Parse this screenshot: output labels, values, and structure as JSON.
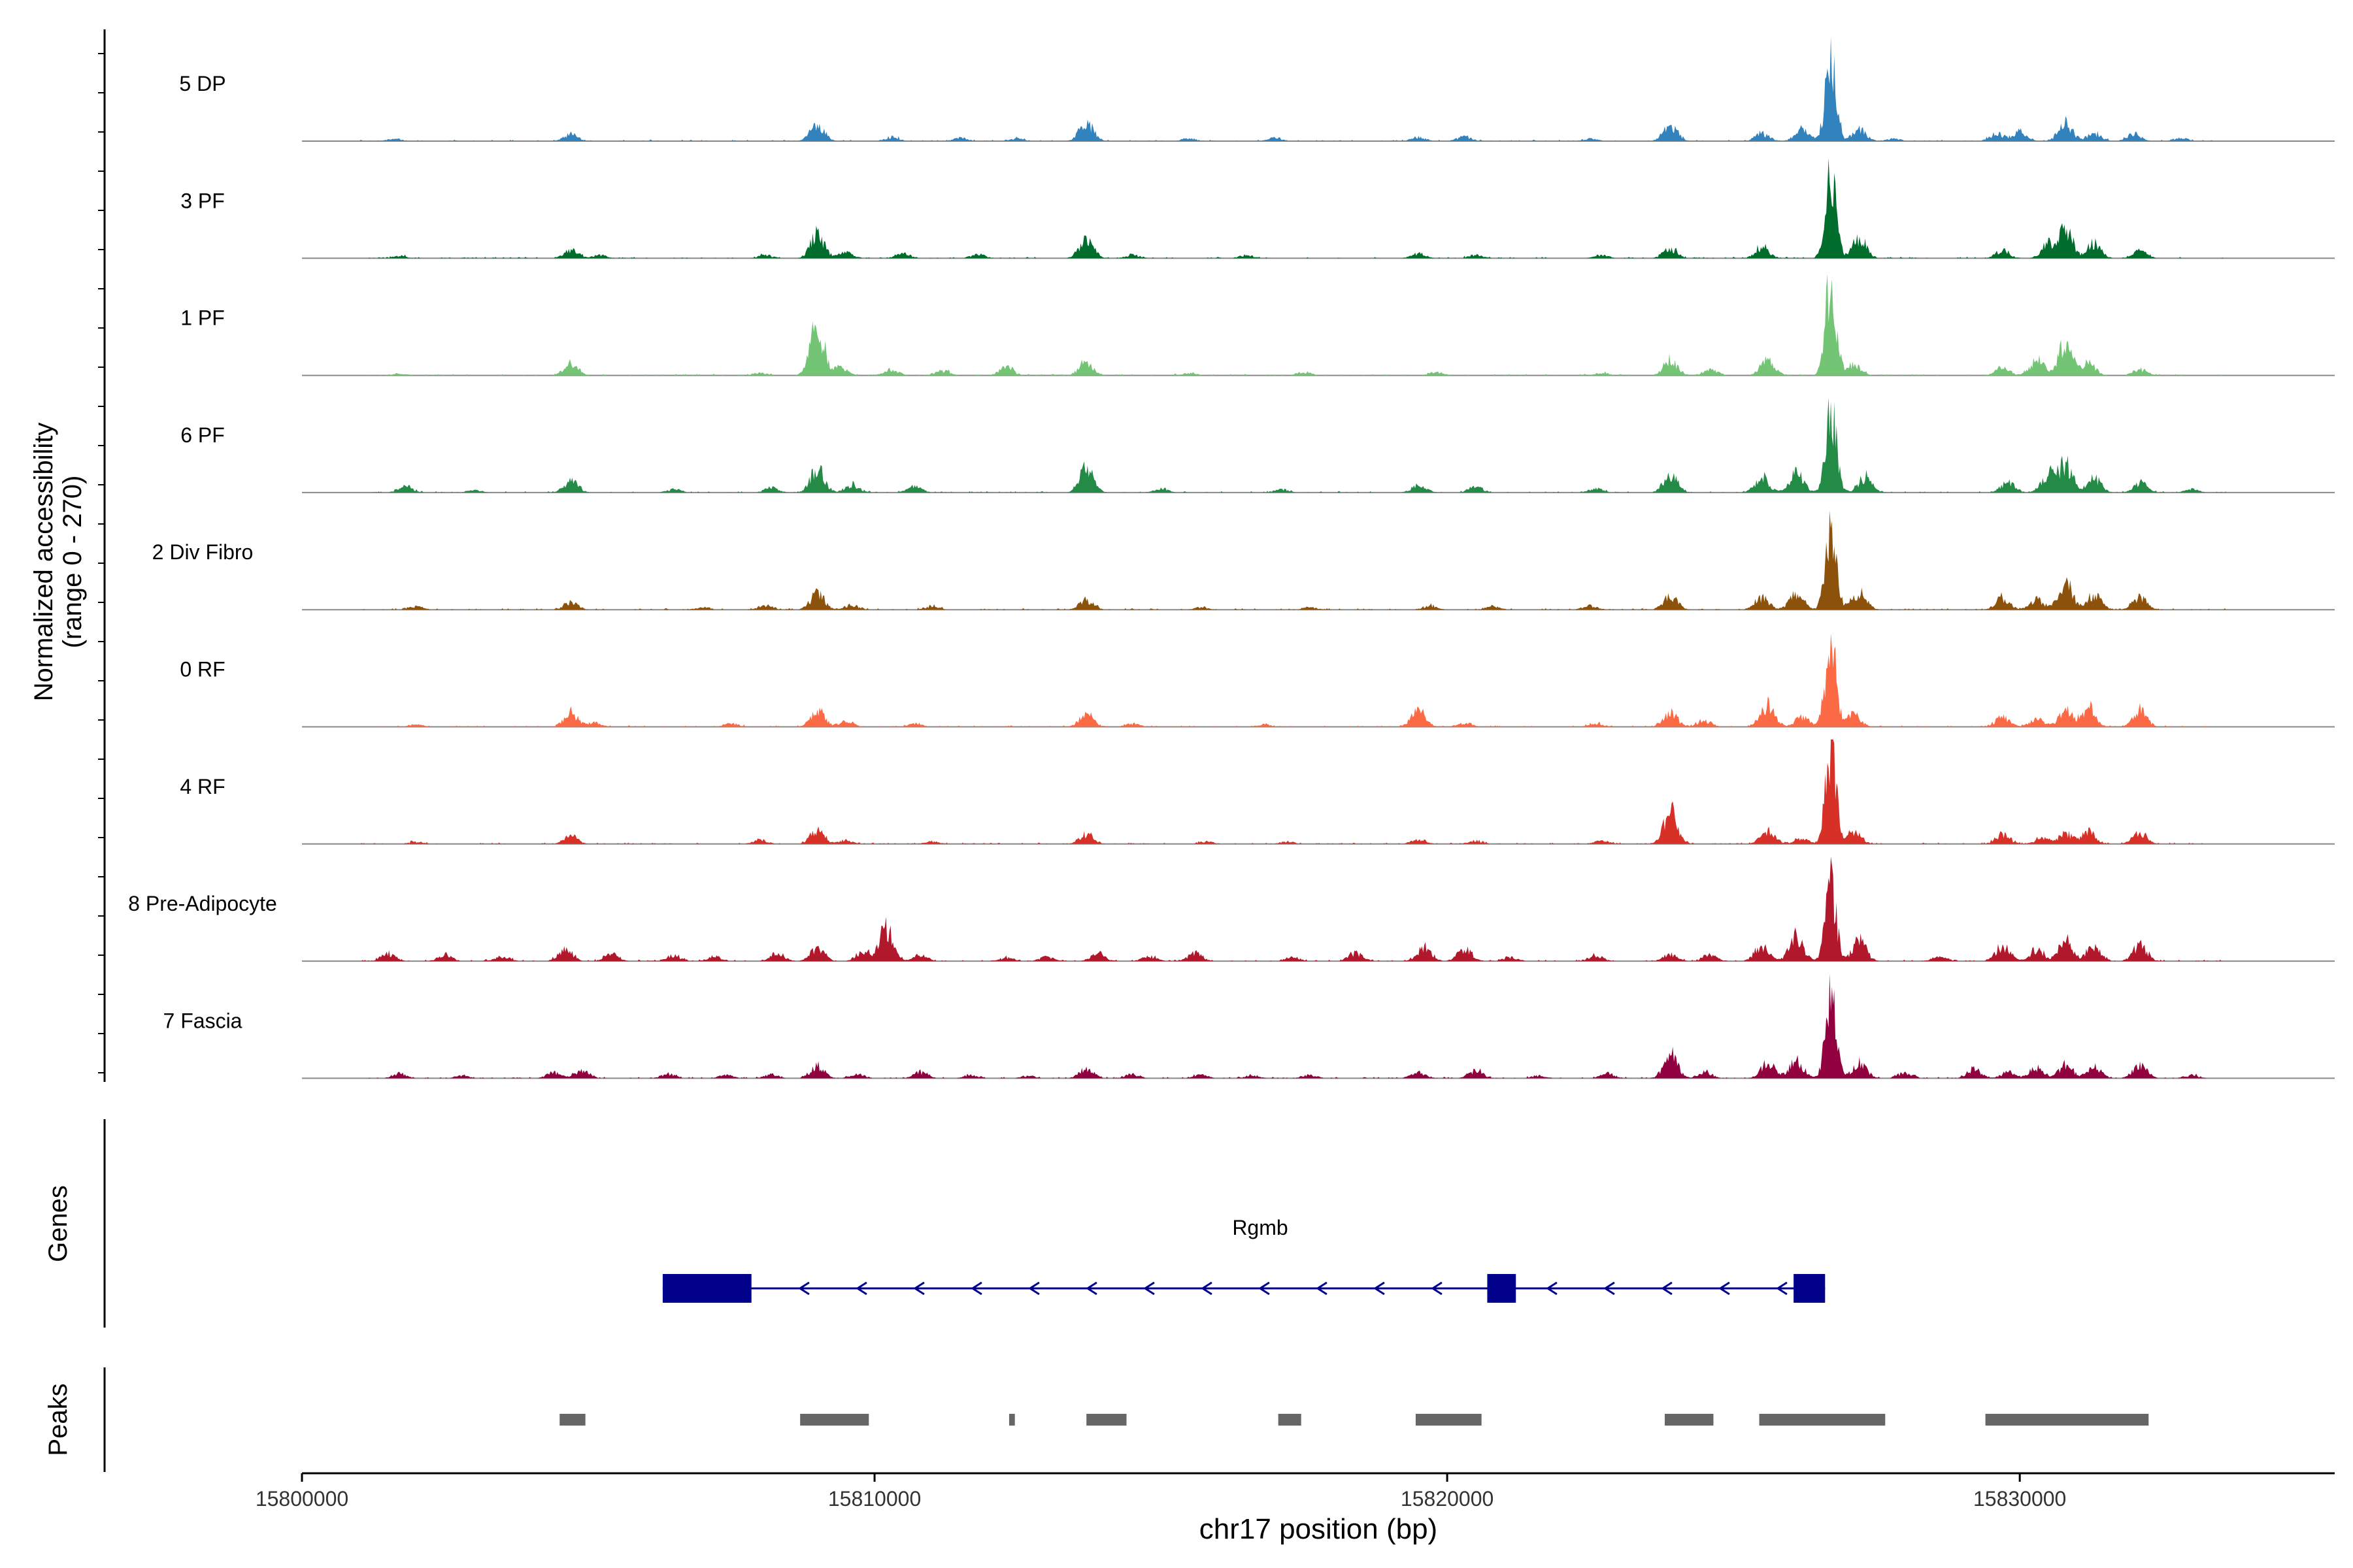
{
  "chart_data": {
    "type": "area",
    "subtype": "genome-coverage-tracks",
    "ylabel_line1": "Normalized accessibility",
    "ylabel_line2": "(range 0 - 270)",
    "y_range": [
      0,
      270
    ],
    "xlabel": "chr17 position (bp)",
    "xlim": [
      15800000,
      15835500
    ],
    "x_ticks": [
      15800000,
      15810000,
      15820000,
      15830000
    ],
    "x_tick_labels": [
      "15800000",
      "15810000",
      "15820000",
      "15830000"
    ],
    "tracks": [
      {
        "name": "5 DP",
        "color": "#3182bd",
        "seed": 11,
        "peaks": [
          [
            15801600,
            6
          ],
          [
            15804700,
            18
          ],
          [
            15809000,
            40
          ],
          [
            15810300,
            10
          ],
          [
            15811500,
            8
          ],
          [
            15812500,
            6
          ],
          [
            15813700,
            50
          ],
          [
            15815500,
            6
          ],
          [
            15817000,
            8
          ],
          [
            15819500,
            10
          ],
          [
            15820300,
            12
          ],
          [
            15822500,
            6
          ],
          [
            15823900,
            40
          ],
          [
            15825500,
            20
          ],
          [
            15826200,
            30
          ],
          [
            15826700,
            230
          ],
          [
            15827200,
            30
          ],
          [
            15827800,
            6
          ],
          [
            15829600,
            18
          ],
          [
            15830000,
            25
          ],
          [
            15830800,
            45
          ],
          [
            15831300,
            20
          ],
          [
            15832000,
            18
          ],
          [
            15832800,
            8
          ]
        ]
      },
      {
        "name": "3 PF",
        "color": "#006d2c",
        "seed": 23,
        "peaks": [
          [
            15801700,
            6
          ],
          [
            15804700,
            20
          ],
          [
            15805200,
            8
          ],
          [
            15808100,
            8
          ],
          [
            15809000,
            60
          ],
          [
            15809500,
            15
          ],
          [
            15810500,
            12
          ],
          [
            15811800,
            10
          ],
          [
            15813700,
            50
          ],
          [
            15814500,
            8
          ],
          [
            15816500,
            8
          ],
          [
            15819500,
            12
          ],
          [
            15820500,
            8
          ],
          [
            15822700,
            8
          ],
          [
            15823900,
            25
          ],
          [
            15825500,
            30
          ],
          [
            15826700,
            230
          ],
          [
            15827200,
            50
          ],
          [
            15829700,
            20
          ],
          [
            15830500,
            35
          ],
          [
            15830800,
            70
          ],
          [
            15831300,
            40
          ],
          [
            15832100,
            18
          ]
        ]
      },
      {
        "name": "1 PF",
        "color": "#74c476",
        "seed": 37,
        "peaks": [
          [
            15801700,
            5
          ],
          [
            15804700,
            30
          ],
          [
            15808000,
            6
          ],
          [
            15809000,
            120
          ],
          [
            15809400,
            20
          ],
          [
            15810300,
            15
          ],
          [
            15811200,
            12
          ],
          [
            15812300,
            20
          ],
          [
            15813700,
            35
          ],
          [
            15815500,
            6
          ],
          [
            15817500,
            8
          ],
          [
            15819800,
            8
          ],
          [
            15822700,
            6
          ],
          [
            15823900,
            40
          ],
          [
            15824600,
            15
          ],
          [
            15825600,
            40
          ],
          [
            15826700,
            230
          ],
          [
            15827100,
            30
          ],
          [
            15829700,
            20
          ],
          [
            15830300,
            40
          ],
          [
            15830800,
            80
          ],
          [
            15831200,
            30
          ],
          [
            15832100,
            15
          ]
        ]
      },
      {
        "name": "6 PF",
        "color": "#238b45",
        "seed": 49,
        "peaks": [
          [
            15801800,
            15
          ],
          [
            15803000,
            6
          ],
          [
            15804700,
            30
          ],
          [
            15806500,
            8
          ],
          [
            15808200,
            12
          ],
          [
            15809000,
            60
          ],
          [
            15809600,
            20
          ],
          [
            15810700,
            15
          ],
          [
            15813700,
            60
          ],
          [
            15815000,
            10
          ],
          [
            15817100,
            8
          ],
          [
            15819500,
            20
          ],
          [
            15820500,
            15
          ],
          [
            15822600,
            10
          ],
          [
            15823900,
            45
          ],
          [
            15825500,
            40
          ],
          [
            15826100,
            50
          ],
          [
            15826700,
            230
          ],
          [
            15827300,
            40
          ],
          [
            15829800,
            25
          ],
          [
            15830500,
            45
          ],
          [
            15830800,
            70
          ],
          [
            15831300,
            35
          ],
          [
            15832100,
            25
          ],
          [
            15833000,
            8
          ]
        ]
      },
      {
        "name": "2 Div Fibro",
        "color": "#8c510a",
        "seed": 61,
        "peaks": [
          [
            15802000,
            8
          ],
          [
            15804700,
            20
          ],
          [
            15807000,
            6
          ],
          [
            15808100,
            10
          ],
          [
            15809000,
            40
          ],
          [
            15809600,
            12
          ],
          [
            15811000,
            8
          ],
          [
            15813700,
            25
          ],
          [
            15815700,
            6
          ],
          [
            15817600,
            6
          ],
          [
            15819700,
            10
          ],
          [
            15820800,
            8
          ],
          [
            15822500,
            10
          ],
          [
            15823900,
            35
          ],
          [
            15825500,
            30
          ],
          [
            15826100,
            40
          ],
          [
            15826700,
            230
          ],
          [
            15827200,
            45
          ],
          [
            15829700,
            30
          ],
          [
            15830300,
            25
          ],
          [
            15830800,
            70
          ],
          [
            15831300,
            40
          ],
          [
            15832100,
            30
          ]
        ]
      },
      {
        "name": "0 RF",
        "color": "#fc6a45",
        "seed": 73,
        "peaks": [
          [
            15802000,
            6
          ],
          [
            15804700,
            35
          ],
          [
            15805100,
            10
          ],
          [
            15807500,
            8
          ],
          [
            15809000,
            40
          ],
          [
            15809500,
            15
          ],
          [
            15810700,
            8
          ],
          [
            15813700,
            35
          ],
          [
            15814500,
            8
          ],
          [
            15816800,
            6
          ],
          [
            15819500,
            45
          ],
          [
            15820300,
            10
          ],
          [
            15822600,
            8
          ],
          [
            15823900,
            35
          ],
          [
            15824500,
            15
          ],
          [
            15825600,
            55
          ],
          [
            15826200,
            25
          ],
          [
            15826700,
            230
          ],
          [
            15827100,
            30
          ],
          [
            15829700,
            25
          ],
          [
            15830300,
            20
          ],
          [
            15830800,
            40
          ],
          [
            15831200,
            50
          ],
          [
            15832100,
            40
          ]
        ]
      },
      {
        "name": "4 RF",
        "color": "#d73027",
        "seed": 89,
        "peaks": [
          [
            15802000,
            5
          ],
          [
            15804700,
            20
          ],
          [
            15808000,
            10
          ],
          [
            15809000,
            35
          ],
          [
            15809500,
            10
          ],
          [
            15811000,
            6
          ],
          [
            15813700,
            25
          ],
          [
            15815800,
            6
          ],
          [
            15817200,
            6
          ],
          [
            15819500,
            12
          ],
          [
            15820500,
            8
          ],
          [
            15822700,
            8
          ],
          [
            15823900,
            80
          ],
          [
            15825600,
            35
          ],
          [
            15826200,
            15
          ],
          [
            15826700,
            230
          ],
          [
            15827100,
            30
          ],
          [
            15829700,
            25
          ],
          [
            15830400,
            15
          ],
          [
            15830800,
            25
          ],
          [
            15831200,
            30
          ],
          [
            15832100,
            30
          ]
        ]
      },
      {
        "name": "8 Pre-Adipocyte",
        "color": "#b2182b",
        "seed": 97,
        "peaks": [
          [
            15801500,
            18
          ],
          [
            15802500,
            15
          ],
          [
            15803500,
            12
          ],
          [
            15804600,
            30
          ],
          [
            15805400,
            20
          ],
          [
            15806500,
            15
          ],
          [
            15807200,
            12
          ],
          [
            15808300,
            20
          ],
          [
            15809000,
            30
          ],
          [
            15809800,
            25
          ],
          [
            15810200,
            80
          ],
          [
            15810800,
            15
          ],
          [
            15812300,
            8
          ],
          [
            15813000,
            10
          ],
          [
            15813900,
            20
          ],
          [
            15814800,
            12
          ],
          [
            15815600,
            20
          ],
          [
            15817300,
            10
          ],
          [
            15818400,
            20
          ],
          [
            15819600,
            35
          ],
          [
            15820300,
            30
          ],
          [
            15821100,
            10
          ],
          [
            15822600,
            15
          ],
          [
            15823900,
            18
          ],
          [
            15824600,
            15
          ],
          [
            15825500,
            40
          ],
          [
            15826100,
            60
          ],
          [
            15826700,
            200
          ],
          [
            15827200,
            50
          ],
          [
            15828600,
            10
          ],
          [
            15829700,
            40
          ],
          [
            15830300,
            30
          ],
          [
            15830800,
            50
          ],
          [
            15831300,
            40
          ],
          [
            15832100,
            40
          ]
        ]
      },
      {
        "name": "7 Fascia",
        "color": "#91003f",
        "seed": 113,
        "peaks": [
          [
            15801700,
            12
          ],
          [
            15802800,
            6
          ],
          [
            15804400,
            15
          ],
          [
            15804900,
            20
          ],
          [
            15806400,
            10
          ],
          [
            15807400,
            8
          ],
          [
            15808200,
            10
          ],
          [
            15809000,
            30
          ],
          [
            15809700,
            10
          ],
          [
            15810800,
            15
          ],
          [
            15811700,
            8
          ],
          [
            15812700,
            6
          ],
          [
            15813700,
            25
          ],
          [
            15814500,
            10
          ],
          [
            15815700,
            8
          ],
          [
            15816600,
            6
          ],
          [
            15817600,
            8
          ],
          [
            15819500,
            15
          ],
          [
            15820500,
            20
          ],
          [
            15821600,
            6
          ],
          [
            15822800,
            12
          ],
          [
            15823900,
            60
          ],
          [
            15824500,
            15
          ],
          [
            15825600,
            40
          ],
          [
            15826100,
            45
          ],
          [
            15826700,
            210
          ],
          [
            15827200,
            40
          ],
          [
            15828000,
            15
          ],
          [
            15829200,
            25
          ],
          [
            15829800,
            15
          ],
          [
            15830300,
            25
          ],
          [
            15830800,
            35
          ],
          [
            15831300,
            30
          ],
          [
            15832100,
            35
          ],
          [
            15833000,
            8
          ]
        ]
      }
    ],
    "gene": {
      "name": "Rgmb",
      "color": "#00008b",
      "strand": "-",
      "start": 15806300,
      "end": 15826600,
      "exons": [
        [
          15806300,
          15807850
        ],
        [
          15820700,
          15821200
        ],
        [
          15826050,
          15826600
        ]
      ]
    },
    "peaks_track": {
      "color": "#666666",
      "regions": [
        [
          15804500,
          15804950
        ],
        [
          15808700,
          15809900
        ],
        [
          15812350,
          15812450
        ],
        [
          15813700,
          15814400
        ],
        [
          15817050,
          15817450
        ],
        [
          15819450,
          15820600
        ],
        [
          15823800,
          15824650
        ],
        [
          15825450,
          15827650
        ],
        [
          15829400,
          15832250
        ]
      ]
    },
    "panel_labels": {
      "genes": "Genes",
      "peaks": "Peaks"
    }
  }
}
